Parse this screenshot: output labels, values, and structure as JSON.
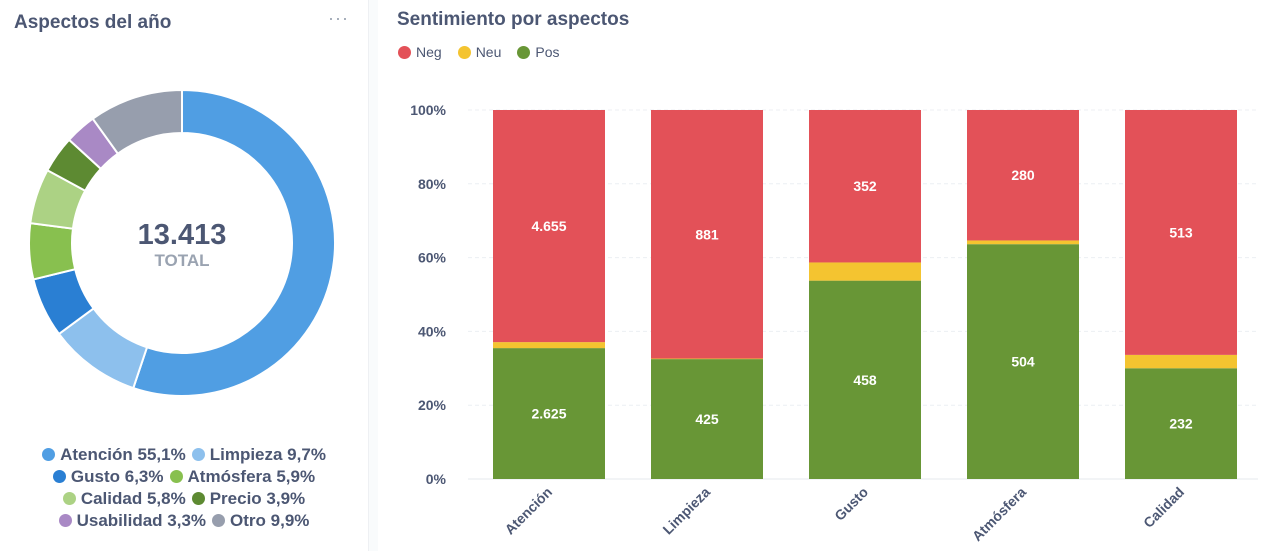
{
  "donut_card": {
    "title": "Aspectos del año",
    "menu_icon": "more-dots-icon",
    "total_value": "13.413",
    "total_label": "TOTAL"
  },
  "bar_card": {
    "title": "Sentimiento por aspectos"
  },
  "chart_data": [
    {
      "type": "pie",
      "variant": "donut",
      "title": "Aspectos del año",
      "center_value": "13.413",
      "center_label": "TOTAL",
      "slices": [
        {
          "label": "Atención",
          "value": 55.1,
          "display": "Atención 55,1%",
          "color": "#509ee3"
        },
        {
          "label": "Limpieza",
          "value": 9.7,
          "display": "Limpieza 9,7%",
          "color": "#8dc0ed"
        },
        {
          "label": "Gusto",
          "value": 6.3,
          "display": "Gusto 6,3%",
          "color": "#2a7fd3"
        },
        {
          "label": "Atmósfera",
          "value": 5.9,
          "display": "Atmósfera 5,9%",
          "color": "#88c04f"
        },
        {
          "label": "Calidad",
          "value": 5.8,
          "display": "Calidad 5,8%",
          "color": "#acd284"
        },
        {
          "label": "Precio",
          "value": 3.9,
          "display": "Precio 3,9%",
          "color": "#5d8a32"
        },
        {
          "label": "Usabilidad",
          "value": 3.3,
          "display": "Usabilidad 3,3%",
          "color": "#a989c5"
        },
        {
          "label": "Otro",
          "value": 9.9,
          "display": "Otro 9,9%",
          "color": "#979ead"
        }
      ],
      "legend": "bottom"
    },
    {
      "type": "bar",
      "stacked": "percent",
      "title": "Sentimiento por aspectos",
      "categories": [
        "Atención",
        "Limpieza",
        "Gusto",
        "Atmósfera",
        "Calidad"
      ],
      "series": [
        {
          "name": "Pos",
          "color": "#689636",
          "values": [
            2625,
            425,
            458,
            504,
            232
          ],
          "labels": [
            "2.625",
            "425",
            "458",
            "504",
            "232"
          ]
        },
        {
          "name": "Neu",
          "color": "#f4c430",
          "values": [
            120,
            2,
            42,
            8,
            28
          ],
          "labels": [
            "",
            "",
            "",
            "",
            ""
          ]
        },
        {
          "name": "Neg",
          "color": "#e35158",
          "values": [
            4655,
            881,
            352,
            280,
            513
          ],
          "labels": [
            "4.655",
            "881",
            "352",
            "280",
            "513"
          ]
        }
      ],
      "legend_order": [
        "Neg",
        "Neu",
        "Pos"
      ],
      "y_ticks": [
        "0%",
        "20%",
        "40%",
        "60%",
        "80%",
        "100%"
      ],
      "ylim": [
        0,
        100
      ],
      "grid": true,
      "legend": "top-left"
    }
  ]
}
